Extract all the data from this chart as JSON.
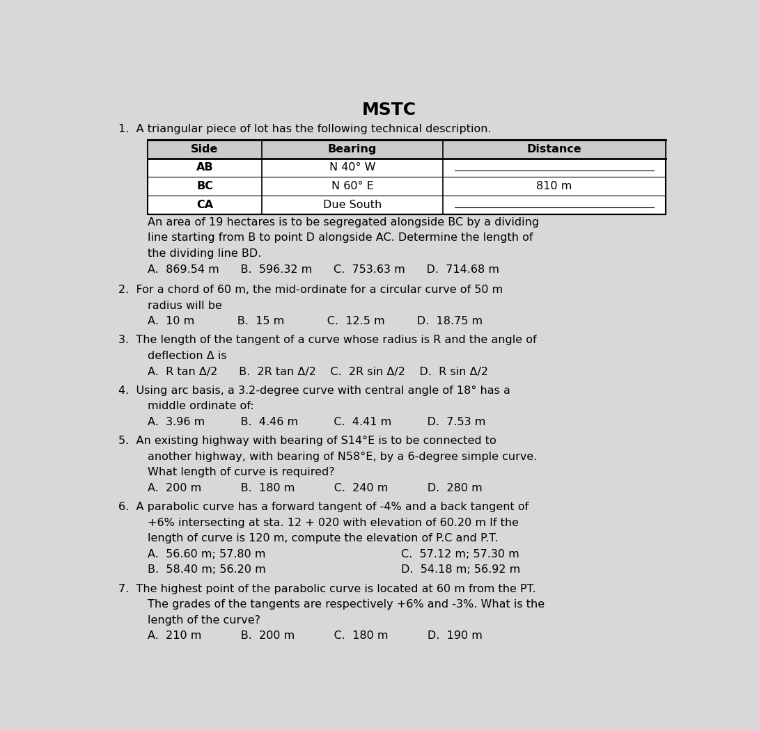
{
  "title": "MSTC",
  "bg_color": "#d8d8d8",
  "paper_color": "#e8e8e8",
  "text_color": "#000000",
  "questions": [
    {
      "number": "1.",
      "main_text": "A triangular piece of lot has the following technical description.",
      "table": {
        "headers": [
          "Side",
          "Bearing",
          "Distance"
        ],
        "rows": [
          [
            "AB",
            "N 40° W",
            ""
          ],
          [
            "BC",
            "N 60° E",
            "810 m"
          ],
          [
            "CA",
            "Due South",
            ""
          ]
        ]
      },
      "continuation": "An area of 19 hectares is to be segregated alongside BC by a dividing\nline starting from B to point D alongside AC. Determine the length of\nthe dividing line BD.",
      "choices": "A.  869.54 m      B.  596.32 m      C.  753.63 m      D.  714.68 m"
    },
    {
      "number": "2.",
      "main_text": "For a chord of 60 m, the mid-ordinate for a circular curve of 50 m\nradius will be",
      "choices": "A.  10 m            B.  15 m            C.  12.5 m         D.  18.75 m"
    },
    {
      "number": "3.",
      "main_text": "The length of the tangent of a curve whose radius is R and the angle of\ndeflection Δ is",
      "choices": "A.  R tan Δ/2      B.  2R tan Δ/2    C.  2R sin Δ/2    D.  R sin Δ/2"
    },
    {
      "number": "4.",
      "main_text": "Using arc basis, a 3.2-degree curve with central angle of 18° has a\nmiddle ordinate of:",
      "choices": "A.  3.96 m          B.  4.46 m          C.  4.41 m          D.  7.53 m"
    },
    {
      "number": "5.",
      "main_text": "An existing highway with bearing of S14°E is to be connected to\nanother highway, with bearing of N58°E, by a 6-degree simple curve.\nWhat length of curve is required?",
      "choices": "A.  200 m           B.  180 m           C.  240 m           D.  280 m"
    },
    {
      "number": "6.",
      "main_text": "A parabolic curve has a forward tangent of -4% and a back tangent of\n+6% intersecting at sta. 12 + 020 with elevation of 60.20 m If the\nlength of curve is 120 m, compute the elevation of P.C and P.T.",
      "choices_2col": [
        [
          "A.  56.60 m; 57.80 m",
          "C.  57.12 m; 57.30 m"
        ],
        [
          "B.  58.40 m; 56.20 m",
          "D.  54.18 m; 56.92 m"
        ]
      ]
    },
    {
      "number": "7.",
      "main_text": "The highest point of the parabolic curve is located at 60 m from the PT.\nThe grades of the tangents are respectively +6% and -3%. What is the\nlength of the curve?",
      "choices": "A.  210 m           B.  200 m           C.  180 m           D.  190 m"
    }
  ]
}
